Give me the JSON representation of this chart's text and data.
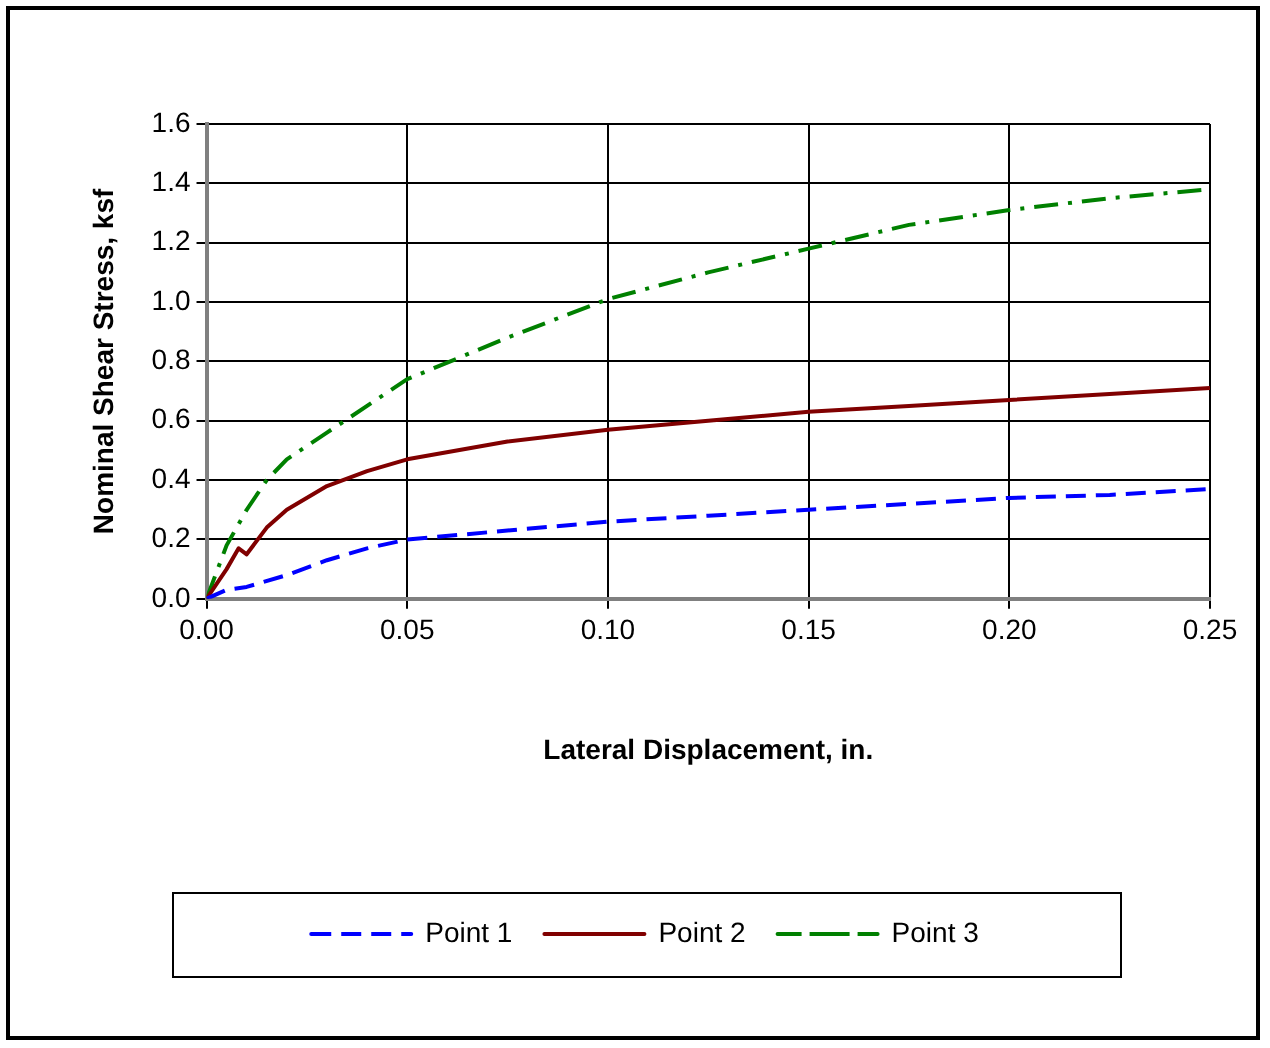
{
  "chart_data": {
    "type": "line",
    "xlabel": "Lateral Displacement, in.",
    "ylabel": "Nominal Shear Stress, ksf",
    "xlim": [
      0,
      0.25
    ],
    "xticks": [
      {
        "value": 0,
        "label": "0.00"
      },
      {
        "value": 0.05,
        "label": "0.05"
      },
      {
        "value": 0.1,
        "label": "0.10"
      },
      {
        "value": 0.15,
        "label": "0.15"
      },
      {
        "value": 0.2,
        "label": "0.20"
      },
      {
        "value": 0.25,
        "label": "0.25"
      }
    ],
    "ylim": [
      0,
      1.6
    ],
    "yticks": [
      {
        "value": 0,
        "label": "0.0"
      },
      {
        "value": 0.2,
        "label": "0.2"
      },
      {
        "value": 0.4,
        "label": "0.4"
      },
      {
        "value": 0.6,
        "label": "0.6"
      },
      {
        "value": 0.8,
        "label": "0.8"
      },
      {
        "value": 1,
        "label": "1.0"
      },
      {
        "value": 1.2,
        "label": "1.2"
      },
      {
        "value": 1.4,
        "label": "1.4"
      },
      {
        "value": 1.6,
        "label": "1.6"
      }
    ],
    "grid": true,
    "legend": "bottom",
    "marker": "none",
    "series": [
      {
        "name": "Point 1",
        "color": "#0000ff",
        "line_style": "dashed",
        "x": [
          0,
          0.005,
          0.01,
          0.02,
          0.03,
          0.04,
          0.05,
          0.075,
          0.1,
          0.125,
          0.15,
          0.175,
          0.2,
          0.225,
          0.25
        ],
        "values": [
          0,
          0.03,
          0.04,
          0.08,
          0.13,
          0.17,
          0.2,
          0.23,
          0.26,
          0.28,
          0.3,
          0.32,
          0.34,
          0.35,
          0.37
        ]
      },
      {
        "name": "Point 2",
        "color": "#800000",
        "line_style": "solid",
        "x": [
          0,
          0.005,
          0.008,
          0.01,
          0.015,
          0.02,
          0.03,
          0.04,
          0.05,
          0.075,
          0.1,
          0.125,
          0.15,
          0.175,
          0.2,
          0.225,
          0.25
        ],
        "values": [
          0,
          0.1,
          0.17,
          0.15,
          0.24,
          0.3,
          0.38,
          0.43,
          0.47,
          0.53,
          0.57,
          0.6,
          0.63,
          0.65,
          0.67,
          0.69,
          0.71
        ]
      },
      {
        "name": "Point 3",
        "color": "#008000",
        "line_style": "dashdot",
        "x": [
          0,
          0.005,
          0.01,
          0.015,
          0.02,
          0.03,
          0.04,
          0.05,
          0.075,
          0.1,
          0.125,
          0.15,
          0.175,
          0.2,
          0.225,
          0.25
        ],
        "values": [
          0,
          0.18,
          0.3,
          0.4,
          0.47,
          0.56,
          0.65,
          0.74,
          0.88,
          1.01,
          1.1,
          1.18,
          1.26,
          1.31,
          1.35,
          1.38
        ]
      }
    ]
  }
}
